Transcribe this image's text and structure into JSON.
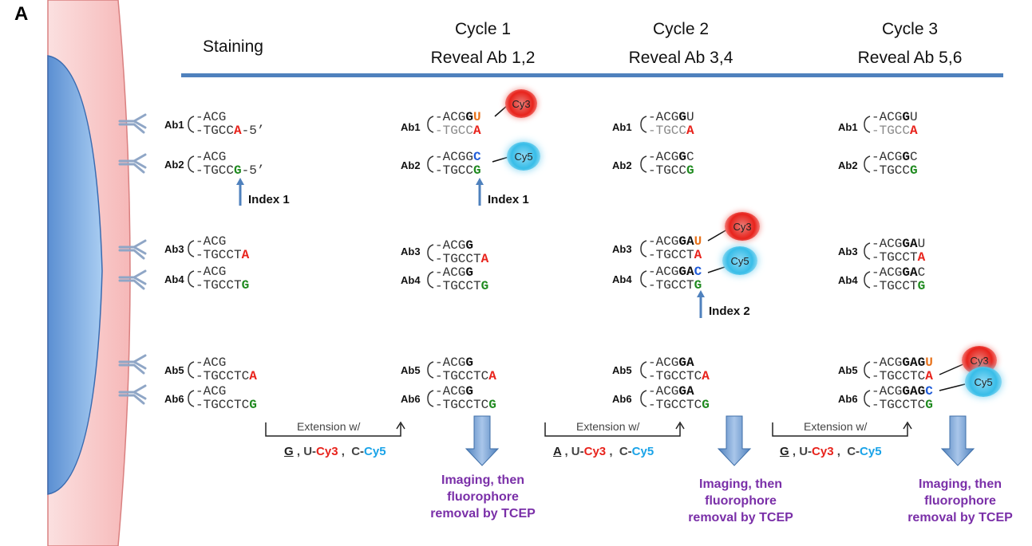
{
  "panel_letter": "A",
  "headers": {
    "staining": "Staining",
    "cycle1_line1": "Cycle 1",
    "cycle1_line2": "Reveal Ab 1,2",
    "cycle2_line1": "Cycle 2",
    "cycle2_line2": "Reveal Ab 3,4",
    "cycle3_line1": "Cycle 3",
    "cycle3_line2": "Reveal Ab 5,6"
  },
  "ab_labels": [
    "Ab1",
    "Ab2",
    "Ab3",
    "Ab4",
    "Ab5",
    "Ab6"
  ],
  "index_labels": {
    "index1": "Index 1",
    "index2": "Index 2"
  },
  "dyes": {
    "cy3": "Cy3",
    "cy5": "Cy5"
  },
  "extension": {
    "label": "Extension w/",
    "mix1": {
      "base": "G",
      "u": "U-",
      "cy3": "Cy3",
      "c": "C-",
      "cy5": "Cy5"
    },
    "mix2": {
      "base": "A",
      "u": "U-",
      "cy3": "Cy3",
      "c": "C-",
      "cy5": "Cy5"
    },
    "mix3": {
      "base": "G",
      "u": "U-",
      "cy3": "Cy3",
      "c": "C-",
      "cy5": "Cy5"
    }
  },
  "imaging": {
    "line1": "Imaging, then",
    "line2": "fluorophore",
    "line3": "removal by TCEP"
  },
  "colors": {
    "cell_membrane": "#f8c8c8",
    "nucleus": "#9cc3ec",
    "rule": "#4f81bd",
    "arrow": "#4f81bd",
    "cy3": "#e8231c",
    "cy5": "#1aa3e8",
    "purple": "#7a2fa8"
  }
}
